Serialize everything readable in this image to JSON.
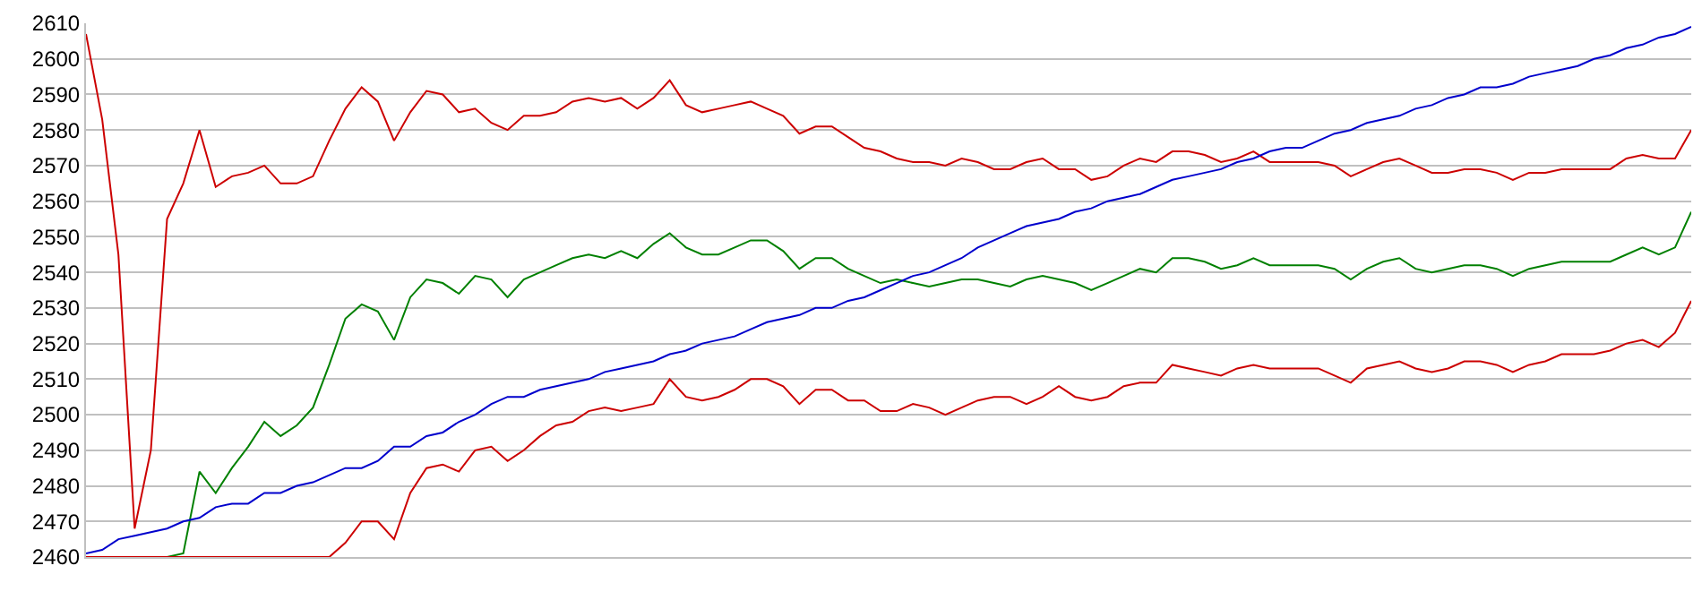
{
  "chart_data": {
    "type": "line",
    "categories": [
      null,
      null,
      null,
      null,
      null,
      null,
      null,
      null,
      null,
      null,
      null,
      null,
      null,
      null,
      null,
      null,
      null,
      null,
      null,
      null,
      null,
      null,
      null,
      null,
      null,
      null,
      null,
      null,
      null,
      null,
      null,
      null,
      null,
      null,
      null,
      null,
      null,
      null,
      null,
      null,
      null,
      null,
      null,
      null,
      null,
      null,
      null,
      null,
      null,
      null,
      null,
      null,
      null,
      null,
      null,
      null,
      null,
      null,
      null,
      null,
      null,
      null,
      null,
      null,
      null,
      null,
      null,
      null,
      null,
      null,
      null,
      null,
      null,
      null,
      null,
      null,
      null,
      null,
      null,
      null,
      null,
      null,
      null,
      null,
      null,
      null,
      null,
      null,
      null,
      null,
      null,
      null,
      null,
      null,
      null,
      null,
      null,
      null,
      null,
      null
    ],
    "ylim": [
      2460,
      2610
    ],
    "yticks": [
      2460,
      2470,
      2480,
      2490,
      2500,
      2510,
      2520,
      2530,
      2540,
      2550,
      2560,
      2570,
      2580,
      2590,
      2600,
      2610
    ],
    "grid": "y",
    "marker": "none",
    "line_style": "solid",
    "tick_labels": "y",
    "series": [
      {
        "color": "#cc0000",
        "values": [
          2607,
          2583,
          2545,
          2468,
          2490,
          2555,
          2565,
          2580,
          2564,
          2567,
          2568,
          2570,
          2565,
          2565,
          2567,
          2577,
          2586,
          2592,
          2588,
          2577,
          2585,
          2591,
          2590,
          2585,
          2586,
          2582,
          2580,
          2584,
          2584,
          2585,
          2588,
          2589,
          2588,
          2589,
          2586,
          2589,
          2594,
          2587,
          2585,
          2586,
          2587,
          2588,
          2586,
          2584,
          2579,
          2581,
          2581,
          2578,
          2575,
          2574,
          2572,
          2571,
          2571,
          2570,
          2572,
          2571,
          2569,
          2569,
          2571,
          2572,
          2569,
          2569,
          2566,
          2567,
          2570,
          2572,
          2571,
          2574,
          2574,
          2573,
          2571,
          2572,
          2574,
          2571,
          2571,
          2571,
          2571,
          2570,
          2567,
          2569,
          2571,
          2572,
          2570,
          2568,
          2568,
          2569,
          2569,
          2568,
          2566,
          2568,
          2568,
          2569,
          2569,
          2569,
          2569,
          2572,
          2573,
          2572,
          2572,
          2580
        ]
      },
      {
        "color": "#008000",
        "values": [
          null,
          null,
          null,
          null,
          null,
          2460,
          2461,
          2484,
          2478,
          2485,
          2491,
          2498,
          2494,
          2497,
          2502,
          2514,
          2527,
          2531,
          2529,
          2521,
          2533,
          2538,
          2537,
          2534,
          2539,
          2538,
          2533,
          2538,
          2540,
          2542,
          2544,
          2545,
          2544,
          2546,
          2544,
          2548,
          2551,
          2547,
          2545,
          2545,
          2547,
          2549,
          2549,
          2546,
          2541,
          2544,
          2544,
          2541,
          2539,
          2537,
          2538,
          2537,
          2536,
          2537,
          2538,
          2538,
          2537,
          2536,
          2538,
          2539,
          2538,
          2537,
          2535,
          2537,
          2539,
          2541,
          2540,
          2544,
          2544,
          2543,
          2541,
          2542,
          2544,
          2542,
          2542,
          2542,
          2542,
          2541,
          2538,
          2541,
          2543,
          2544,
          2541,
          2540,
          2541,
          2542,
          2542,
          2541,
          2539,
          2541,
          2542,
          2543,
          2543,
          2543,
          2543,
          2545,
          2547,
          2545,
          2547,
          2557
        ]
      },
      {
        "color": "#cc0000",
        "values": [
          2460,
          2460,
          2460,
          2460,
          2460,
          2460,
          2460,
          2460,
          2460,
          2460,
          2460,
          2460,
          2460,
          2460,
          2460,
          2460,
          2464,
          2470,
          2470,
          2465,
          2478,
          2485,
          2486,
          2484,
          2490,
          2491,
          2487,
          2490,
          2494,
          2497,
          2498,
          2501,
          2502,
          2501,
          2502,
          2503,
          2510,
          2505,
          2504,
          2505,
          2507,
          2510,
          2510,
          2508,
          2503,
          2507,
          2507,
          2504,
          2504,
          2501,
          2501,
          2503,
          2502,
          2500,
          2502,
          2504,
          2505,
          2505,
          2503,
          2505,
          2508,
          2505,
          2504,
          2505,
          2508,
          2509,
          2509,
          2514,
          2513,
          2512,
          2511,
          2513,
          2514,
          2513,
          2513,
          2513,
          2513,
          2511,
          2509,
          2513,
          2514,
          2515,
          2513,
          2512,
          2513,
          2515,
          2515,
          2514,
          2512,
          2514,
          2515,
          2517,
          2517,
          2517,
          2518,
          2520,
          2521,
          2519,
          2523,
          2532
        ]
      },
      {
        "color": "#0000cc",
        "values": [
          2461,
          2462,
          2465,
          2466,
          2467,
          2468,
          2470,
          2471,
          2474,
          2475,
          2475,
          2478,
          2478,
          2480,
          2481,
          2483,
          2485,
          2485,
          2487,
          2491,
          2491,
          2494,
          2495,
          2498,
          2500,
          2503,
          2505,
          2505,
          2507,
          2508,
          2509,
          2510,
          2512,
          2513,
          2514,
          2515,
          2517,
          2518,
          2520,
          2521,
          2522,
          2524,
          2526,
          2527,
          2528,
          2530,
          2530,
          2532,
          2533,
          2535,
          2537,
          2539,
          2540,
          2542,
          2544,
          2547,
          2549,
          2551,
          2553,
          2554,
          2555,
          2557,
          2558,
          2560,
          2561,
          2562,
          2564,
          2566,
          2567,
          2568,
          2569,
          2571,
          2572,
          2574,
          2575,
          2575,
          2577,
          2579,
          2580,
          2582,
          2583,
          2584,
          2586,
          2587,
          2589,
          2590,
          2592,
          2592,
          2593,
          2595,
          2596,
          2597,
          2598,
          2600,
          2601,
          2603,
          2604,
          2606,
          2607,
          2609
        ]
      }
    ]
  }
}
